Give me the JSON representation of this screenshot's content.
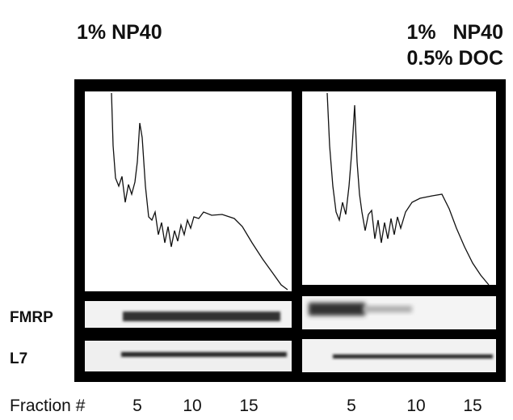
{
  "panels": [
    {
      "title_lines": [
        "1% NP40"
      ],
      "fraction_ticks": [
        "5",
        "10",
        "15"
      ]
    },
    {
      "title_lines": [
        "1%   NP40",
        "0.5% DOC"
      ],
      "fraction_ticks": [
        "5",
        "10",
        "15"
      ]
    }
  ],
  "blot_rows": [
    "FMRP",
    "L7"
  ],
  "x_axis_label": "Fraction #"
}
